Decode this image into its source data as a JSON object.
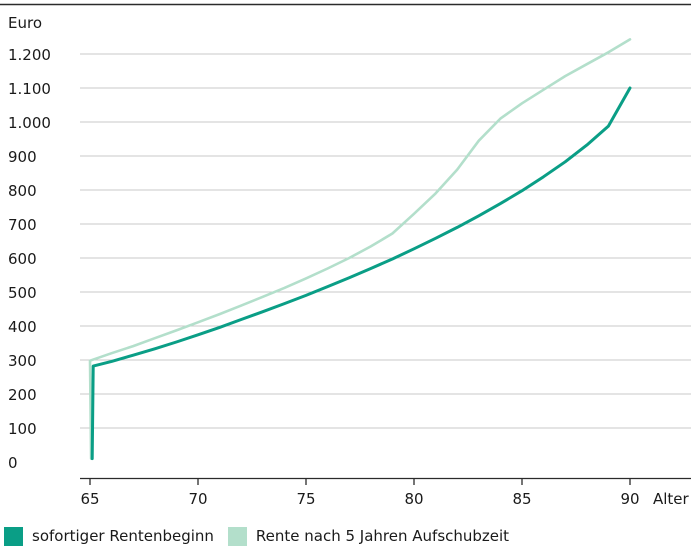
{
  "chart_data": {
    "type": "line",
    "ylabel": "Euro",
    "xlabel": "Alter",
    "xlim": [
      65,
      90
    ],
    "ylim": [
      0,
      1250
    ],
    "x_ticks": [
      65,
      70,
      75,
      80,
      85,
      90
    ],
    "x_tick_labels": [
      "65",
      "70",
      "75",
      "80",
      "85",
      "90"
    ],
    "y_ticks": [
      0,
      100,
      200,
      300,
      400,
      500,
      600,
      700,
      800,
      900,
      1000,
      1100,
      1200
    ],
    "y_tick_labels": [
      "0",
      "100",
      "200",
      "300",
      "400",
      "500",
      "600",
      "700",
      "800",
      "900",
      "1.000",
      "1.100",
      "1.200"
    ],
    "grid": "horizontal",
    "legend_position": "bottom",
    "series": [
      {
        "name": "sofortiger Rentenbeginn",
        "color": "#0a9e86",
        "x": [
          65.1,
          65.15,
          66,
          67,
          68,
          69,
          70,
          71,
          72,
          73,
          74,
          75,
          76,
          77,
          78,
          79,
          80,
          81,
          82,
          83,
          84,
          85,
          86,
          87,
          88,
          89,
          90
        ],
        "y": [
          10,
          282,
          296,
          314,
          333,
          353,
          374,
          396,
          419,
          442,
          466,
          490,
          516,
          542,
          569,
          597,
          627,
          658,
          690,
          724,
          760,
          798,
          839,
          883,
          932,
          988,
          1100
        ]
      },
      {
        "name": "Rente nach 5 Jahren Aufschubzeit",
        "color": "#b3dfcb",
        "x": [
          65.05,
          65.0,
          66,
          67,
          68,
          69,
          70,
          71,
          72,
          73,
          74,
          75,
          76,
          77,
          78,
          79,
          80,
          81,
          82,
          83,
          84,
          85,
          86,
          87,
          88,
          89,
          90
        ],
        "y": [
          10,
          298,
          320,
          341,
          364,
          387,
          411,
          435,
          460,
          486,
          512,
          540,
          569,
          600,
          634,
          672,
          730,
          790,
          860,
          945,
          1010,
          1055,
          1095,
          1135,
          1170,
          1205,
          1243
        ]
      }
    ]
  }
}
